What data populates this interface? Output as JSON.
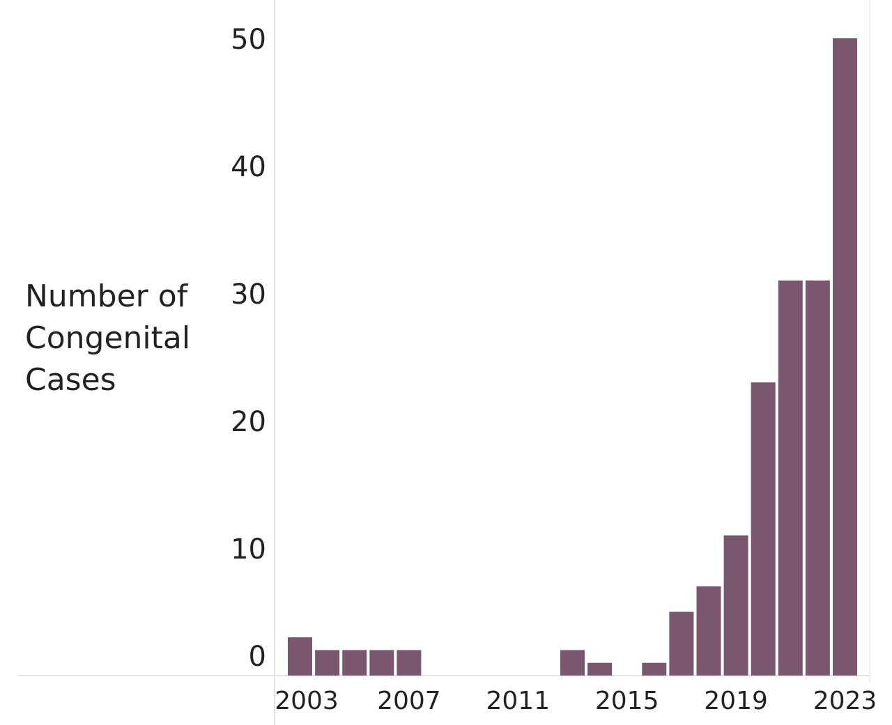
{
  "chart_data": {
    "type": "bar",
    "title": "",
    "xlabel": "",
    "ylabel_lines": [
      "Number of",
      "Congenital",
      "Cases"
    ],
    "x": [
      2003,
      2004,
      2005,
      2006,
      2007,
      2008,
      2009,
      2010,
      2011,
      2012,
      2013,
      2014,
      2015,
      2016,
      2017,
      2018,
      2019,
      2020,
      2021,
      2022,
      2023
    ],
    "values": [
      3,
      2,
      2,
      2,
      2,
      0,
      0,
      0,
      0,
      0,
      2,
      1,
      0,
      1,
      5,
      7,
      11,
      23,
      31,
      31,
      50
    ],
    "ylim": [
      0,
      50
    ],
    "y_ticks": [
      0,
      10,
      20,
      30,
      40,
      50
    ],
    "x_tick_labels": [
      "2003",
      "2007",
      "2011",
      "2015",
      "2019",
      "2023"
    ],
    "grid": false,
    "bar_color": "#7b566f",
    "axis_color": "#d9d9d9"
  }
}
